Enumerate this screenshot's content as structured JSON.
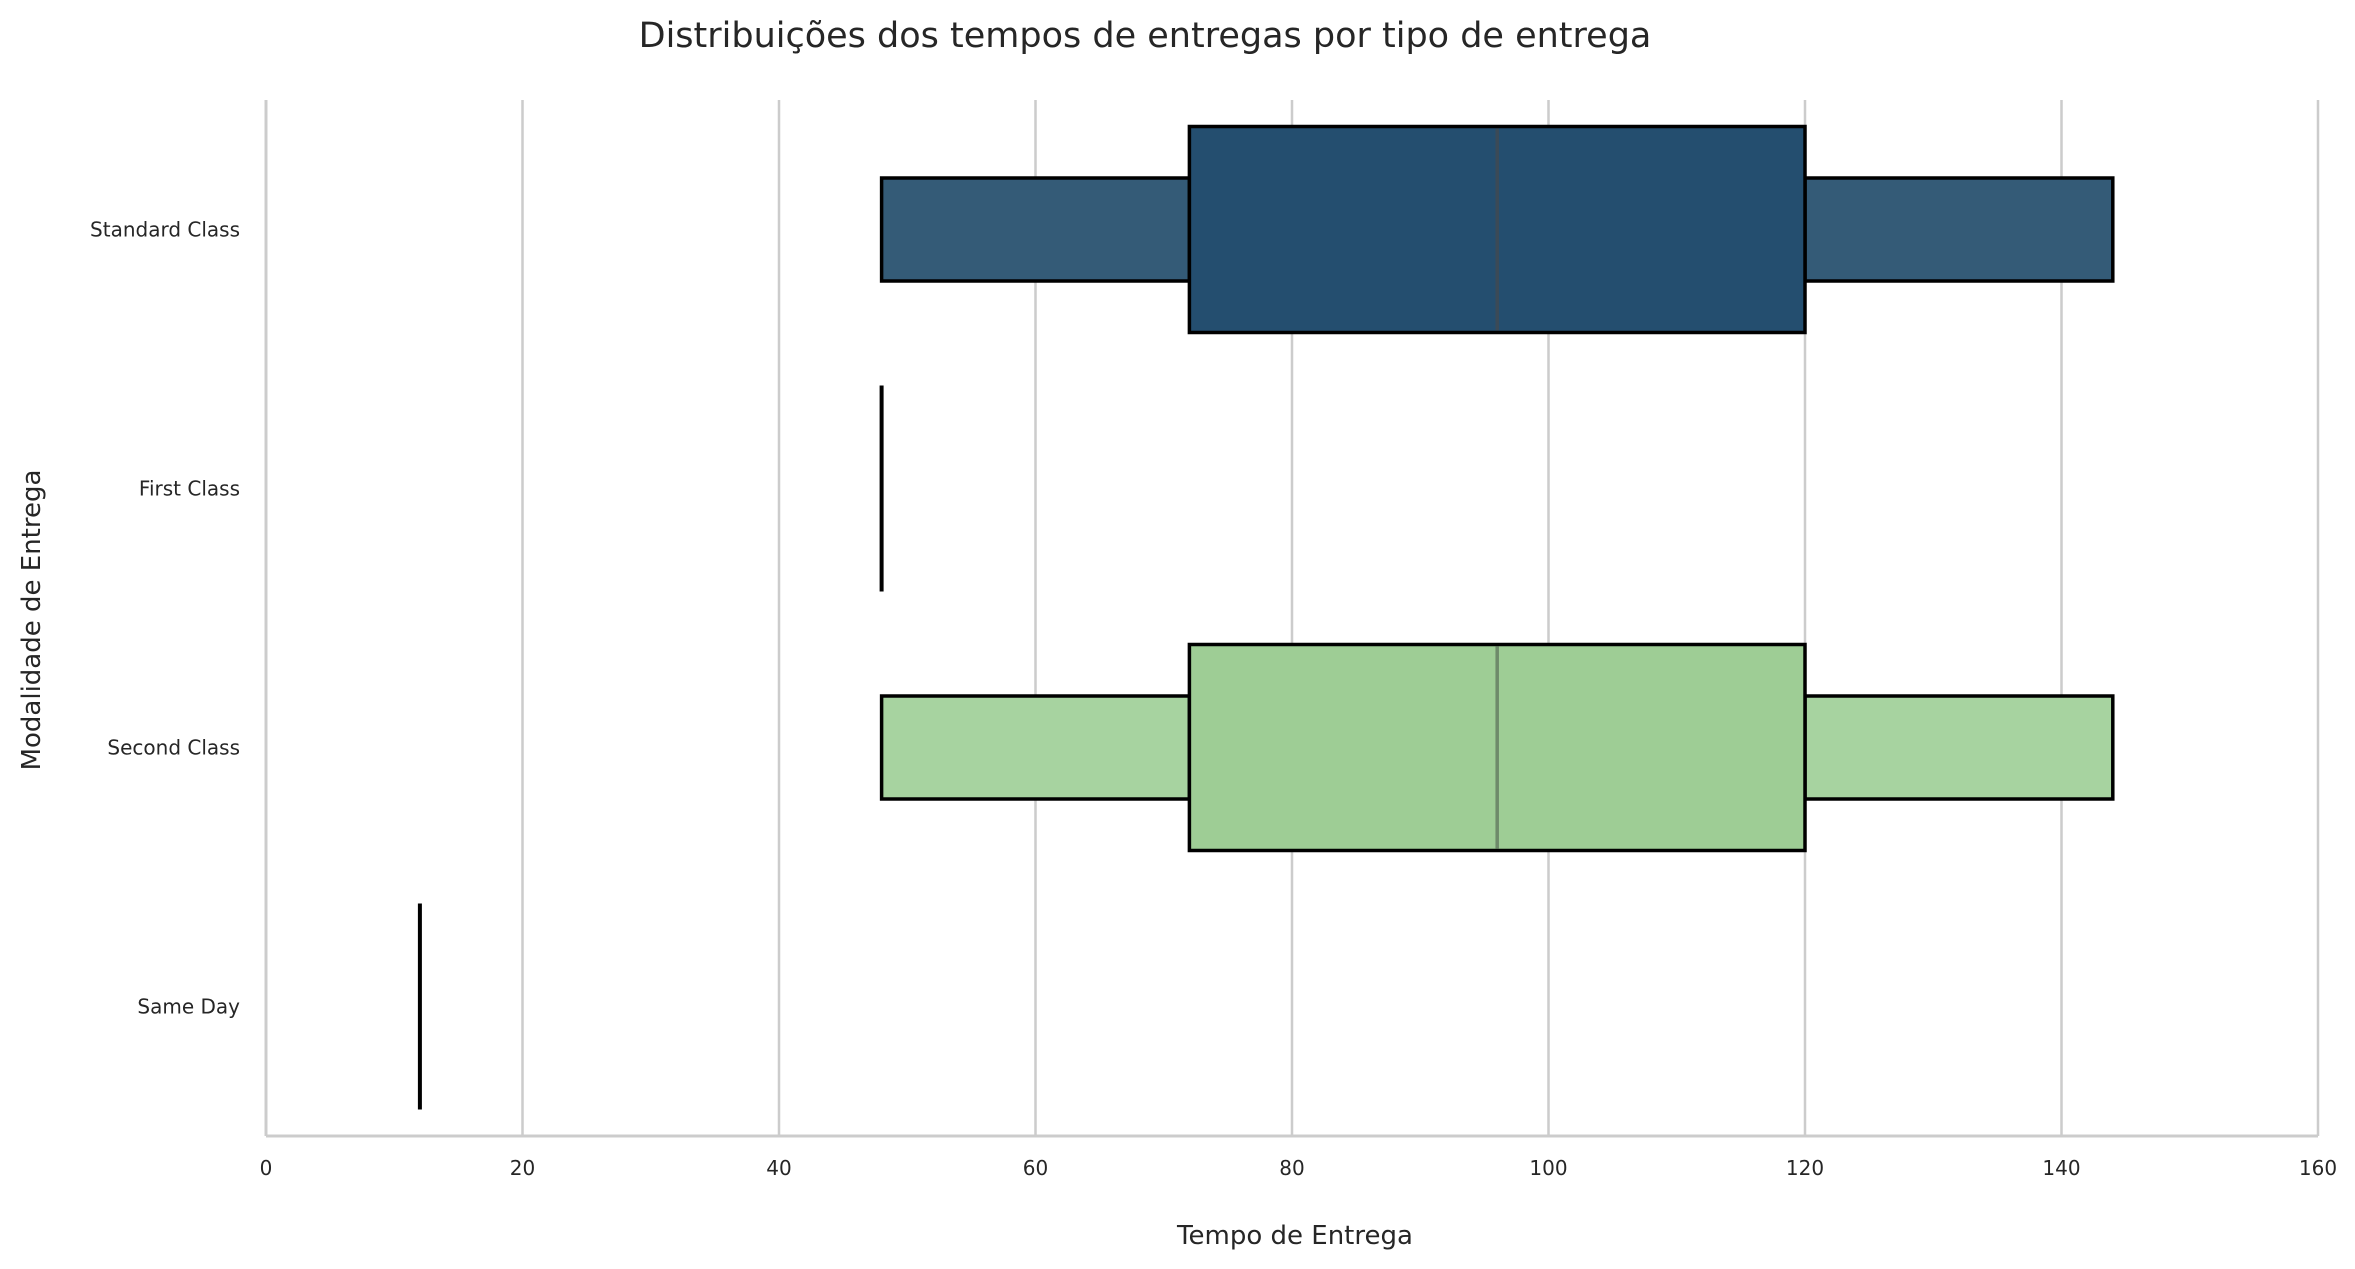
{
  "chart_data": {
    "type": "boxen",
    "orientation": "horizontal",
    "title": "Distribuições dos tempos de entregas por tipo de entrega",
    "xlabel": "Tempo de Entrega",
    "ylabel": "Modalidade de Entrega",
    "xlim": [
      0,
      160
    ],
    "xticks": [
      "0",
      "20",
      "40",
      "60",
      "80",
      "100",
      "120",
      "140",
      "160"
    ],
    "grid": "vertical",
    "categories": [
      "Standard Class",
      "First Class",
      "Second Class",
      "Same Day"
    ],
    "series": [
      {
        "category": "Standard Class",
        "min": 48,
        "q1": 72,
        "median": 96,
        "q3": 120,
        "max": 144,
        "color_inner": "#244e6f",
        "color_outer": "#345b77"
      },
      {
        "category": "First Class",
        "min": 48,
        "q1": 48,
        "median": 48,
        "q3": 48,
        "max": 48,
        "color_inner": "#1f3a5a",
        "color_outer": "#1f3a5a"
      },
      {
        "category": "Second Class",
        "min": 48,
        "q1": 72,
        "median": 96,
        "q3": 120,
        "max": 144,
        "color_inner": "#9ecd95",
        "color_outer": "#a7d3a0"
      },
      {
        "category": "Same Day",
        "min": 12,
        "q1": 12,
        "median": 12,
        "q3": 12,
        "max": 12,
        "color_inner": "#d9efb5",
        "color_outer": "#d9efb5"
      }
    ],
    "colors": {
      "grid": "#cccccc",
      "axis": "#cccccc",
      "edge": "#000000",
      "median_dark": "#3b4a57",
      "median_light": "#6e8a6a"
    }
  }
}
